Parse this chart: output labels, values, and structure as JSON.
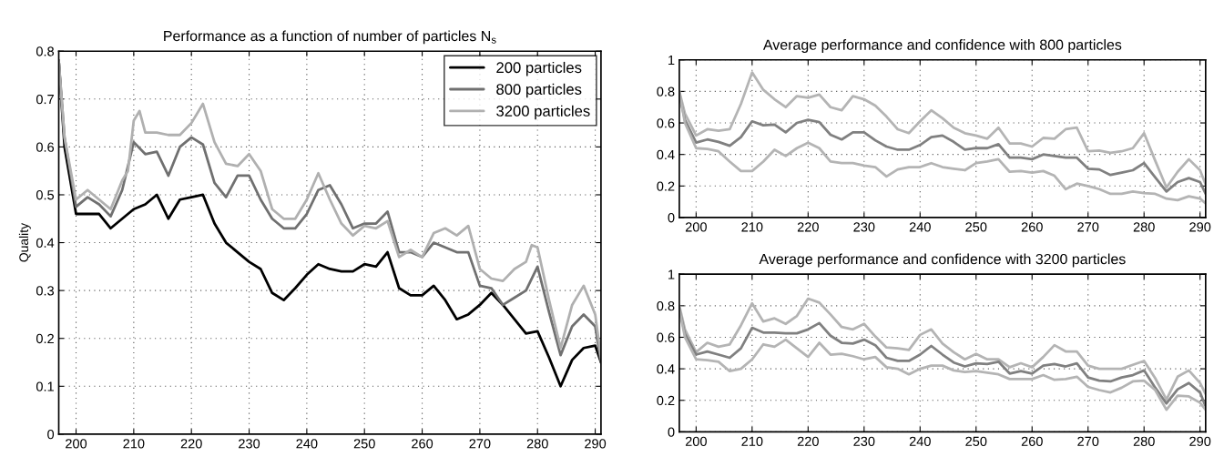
{
  "chart_data": [
    {
      "type": "line",
      "title": "Performance as a function of number of particles N$_{s}$",
      "ylabel": "Quality",
      "x": [
        197,
        198,
        200,
        202,
        204,
        206,
        208,
        210,
        212,
        214,
        216,
        218,
        220,
        222,
        224,
        226,
        228,
        230,
        232,
        234,
        236,
        238,
        240,
        242,
        244,
        246,
        248,
        250,
        252,
        254,
        256,
        258,
        260,
        262,
        264,
        266,
        268,
        270,
        272,
        274,
        276,
        278,
        280,
        282,
        284,
        286,
        288,
        290,
        291
      ],
      "xlim": [
        197,
        291
      ],
      "xticks": [
        200,
        210,
        220,
        230,
        240,
        250,
        260,
        270,
        280,
        290
      ],
      "ylim": [
        0,
        0.8
      ],
      "yticks": [
        0,
        0.1,
        0.2,
        0.3,
        0.4,
        0.5,
        0.6,
        0.7,
        0.8
      ],
      "grid": true,
      "legend": "top right",
      "series": [
        {
          "name": "200 particles",
          "color": "#000000",
          "values": [
            0.78,
            0.6,
            0.46,
            0.46,
            0.46,
            0.43,
            0.45,
            0.47,
            0.48,
            0.5,
            0.45,
            0.49,
            0.495,
            0.5,
            0.44,
            0.4,
            0.38,
            0.36,
            0.345,
            0.295,
            0.28,
            0.305,
            0.333,
            0.355,
            0.345,
            0.34,
            0.34,
            0.355,
            0.35,
            0.38,
            0.305,
            0.29,
            0.29,
            0.31,
            0.28,
            0.24,
            0.25,
            0.27,
            0.295,
            0.27,
            0.24,
            0.21,
            0.215,
            0.16,
            0.1,
            0.155,
            0.18,
            0.185,
            0.15
          ]
        },
        {
          "name": "800 particles",
          "color": "#707070",
          "values": [
            0.78,
            0.62,
            0.475,
            0.495,
            0.48,
            0.455,
            0.51,
            0.61,
            0.585,
            0.59,
            0.54,
            0.6,
            0.62,
            0.605,
            0.525,
            0.495,
            0.54,
            0.54,
            0.49,
            0.45,
            0.43,
            0.43,
            0.46,
            0.51,
            0.52,
            0.48,
            0.43,
            0.44,
            0.44,
            0.465,
            0.38,
            0.38,
            0.37,
            0.4,
            0.39,
            0.38,
            0.38,
            0.31,
            0.305,
            0.27,
            0.285,
            0.3,
            0.35,
            0.255,
            0.165,
            0.225,
            0.25,
            0.225,
            0.15
          ]
        },
        {
          "name": "3200 particles",
          "color": "#b0b0b0",
          "x": [
            197,
            198,
            200,
            202,
            204,
            206,
            208,
            209,
            210,
            211,
            212,
            214,
            216,
            218,
            220,
            222,
            224,
            226,
            228,
            230,
            232,
            234,
            236,
            238,
            240,
            242,
            244,
            246,
            248,
            250,
            252,
            254,
            256,
            258,
            260,
            262,
            264,
            266,
            268,
            270,
            272,
            274,
            276,
            278,
            279,
            280,
            282,
            284,
            286,
            288,
            290,
            291
          ],
          "values": [
            0.78,
            0.62,
            0.49,
            0.51,
            0.49,
            0.47,
            0.53,
            0.55,
            0.655,
            0.675,
            0.63,
            0.63,
            0.625,
            0.625,
            0.65,
            0.69,
            0.61,
            0.565,
            0.56,
            0.585,
            0.55,
            0.47,
            0.45,
            0.45,
            0.49,
            0.545,
            0.49,
            0.44,
            0.415,
            0.435,
            0.43,
            0.445,
            0.37,
            0.385,
            0.37,
            0.42,
            0.43,
            0.415,
            0.435,
            0.345,
            0.325,
            0.32,
            0.345,
            0.36,
            0.395,
            0.39,
            0.28,
            0.18,
            0.27,
            0.31,
            0.25,
            0.16
          ]
        }
      ]
    },
    {
      "type": "line",
      "title": "Average performance and confidence with 800 particles",
      "x": [
        197,
        198,
        200,
        202,
        204,
        206,
        208,
        210,
        212,
        214,
        216,
        218,
        220,
        222,
        224,
        226,
        228,
        230,
        232,
        234,
        236,
        238,
        240,
        242,
        244,
        246,
        248,
        250,
        252,
        254,
        256,
        258,
        260,
        262,
        264,
        266,
        268,
        270,
        272,
        274,
        276,
        278,
        280,
        282,
        284,
        286,
        288,
        290,
        291
      ],
      "xlim": [
        197,
        291
      ],
      "xticks": [
        200,
        210,
        220,
        230,
        240,
        250,
        260,
        270,
        280,
        290
      ],
      "ylim": [
        0,
        1
      ],
      "yticks": [
        0,
        0.2,
        0.4,
        0.6,
        0.8,
        1
      ],
      "grid": true,
      "series": [
        {
          "color": "#b4b4b4",
          "values": [
            0.8,
            0.66,
            0.52,
            0.56,
            0.55,
            0.56,
            0.72,
            0.92,
            0.81,
            0.75,
            0.7,
            0.77,
            0.76,
            0.78,
            0.7,
            0.68,
            0.77,
            0.75,
            0.71,
            0.64,
            0.56,
            0.535,
            0.61,
            0.68,
            0.63,
            0.57,
            0.535,
            0.52,
            0.5,
            0.57,
            0.47,
            0.47,
            0.45,
            0.505,
            0.5,
            0.56,
            0.57,
            0.42,
            0.425,
            0.41,
            0.42,
            0.44,
            0.535,
            0.36,
            0.19,
            0.29,
            0.37,
            0.3,
            0.21
          ]
        },
        {
          "color": "#808080",
          "values": [
            0.78,
            0.62,
            0.475,
            0.495,
            0.48,
            0.455,
            0.51,
            0.61,
            0.585,
            0.59,
            0.54,
            0.6,
            0.62,
            0.605,
            0.525,
            0.495,
            0.54,
            0.54,
            0.49,
            0.45,
            0.43,
            0.43,
            0.46,
            0.51,
            0.52,
            0.48,
            0.43,
            0.44,
            0.44,
            0.465,
            0.38,
            0.38,
            0.37,
            0.4,
            0.39,
            0.38,
            0.38,
            0.31,
            0.305,
            0.27,
            0.285,
            0.3,
            0.345,
            0.255,
            0.165,
            0.225,
            0.25,
            0.225,
            0.15
          ]
        },
        {
          "color": "#b4b4b4",
          "values": [
            0.8,
            0.6,
            0.44,
            0.435,
            0.42,
            0.355,
            0.295,
            0.295,
            0.355,
            0.43,
            0.39,
            0.44,
            0.475,
            0.44,
            0.355,
            0.345,
            0.345,
            0.33,
            0.32,
            0.26,
            0.305,
            0.32,
            0.32,
            0.345,
            0.32,
            0.31,
            0.3,
            0.345,
            0.355,
            0.37,
            0.29,
            0.295,
            0.285,
            0.295,
            0.265,
            0.18,
            0.215,
            0.2,
            0.18,
            0.15,
            0.15,
            0.165,
            0.155,
            0.15,
            0.12,
            0.11,
            0.135,
            0.12,
            0.09
          ]
        }
      ]
    },
    {
      "type": "line",
      "title": "Average performance and confidence with 3200 particles",
      "x": [
        197,
        198,
        200,
        202,
        204,
        206,
        208,
        210,
        212,
        214,
        216,
        218,
        220,
        222,
        224,
        226,
        228,
        230,
        232,
        234,
        236,
        238,
        240,
        242,
        244,
        246,
        248,
        250,
        252,
        254,
        256,
        258,
        260,
        262,
        264,
        266,
        268,
        270,
        272,
        274,
        276,
        278,
        280,
        282,
        284,
        286,
        288,
        290,
        291
      ],
      "xlim": [
        197,
        291
      ],
      "xticks": [
        200,
        210,
        220,
        230,
        240,
        250,
        260,
        270,
        280,
        290
      ],
      "ylim": [
        0,
        1
      ],
      "yticks": [
        0,
        0.2,
        0.4,
        0.6,
        0.8,
        1
      ],
      "grid": true,
      "series": [
        {
          "color": "#b4b4b4",
          "values": [
            0.8,
            0.65,
            0.505,
            0.565,
            0.54,
            0.555,
            0.675,
            0.815,
            0.7,
            0.72,
            0.685,
            0.735,
            0.845,
            0.82,
            0.745,
            0.665,
            0.65,
            0.685,
            0.605,
            0.535,
            0.53,
            0.52,
            0.615,
            0.65,
            0.56,
            0.505,
            0.46,
            0.495,
            0.46,
            0.46,
            0.41,
            0.435,
            0.41,
            0.475,
            0.55,
            0.51,
            0.51,
            0.42,
            0.4,
            0.4,
            0.4,
            0.425,
            0.45,
            0.34,
            0.205,
            0.35,
            0.39,
            0.31,
            0.24
          ]
        },
        {
          "color": "#808080",
          "values": [
            0.78,
            0.62,
            0.49,
            0.51,
            0.49,
            0.47,
            0.53,
            0.66,
            0.63,
            0.63,
            0.625,
            0.625,
            0.65,
            0.69,
            0.61,
            0.565,
            0.56,
            0.585,
            0.55,
            0.47,
            0.45,
            0.45,
            0.49,
            0.545,
            0.49,
            0.44,
            0.415,
            0.435,
            0.43,
            0.445,
            0.37,
            0.385,
            0.37,
            0.42,
            0.43,
            0.415,
            0.435,
            0.345,
            0.325,
            0.32,
            0.345,
            0.36,
            0.39,
            0.28,
            0.18,
            0.27,
            0.31,
            0.25,
            0.16
          ]
        },
        {
          "color": "#b4b4b4",
          "values": [
            0.78,
            0.6,
            0.46,
            0.455,
            0.445,
            0.385,
            0.4,
            0.46,
            0.555,
            0.54,
            0.585,
            0.53,
            0.475,
            0.565,
            0.49,
            0.495,
            0.48,
            0.46,
            0.475,
            0.41,
            0.4,
            0.365,
            0.4,
            0.42,
            0.42,
            0.39,
            0.38,
            0.385,
            0.375,
            0.365,
            0.335,
            0.335,
            0.335,
            0.36,
            0.33,
            0.335,
            0.35,
            0.285,
            0.265,
            0.25,
            0.28,
            0.32,
            0.325,
            0.265,
            0.14,
            0.23,
            0.225,
            0.185,
            0.14
          ]
        }
      ]
    }
  ]
}
